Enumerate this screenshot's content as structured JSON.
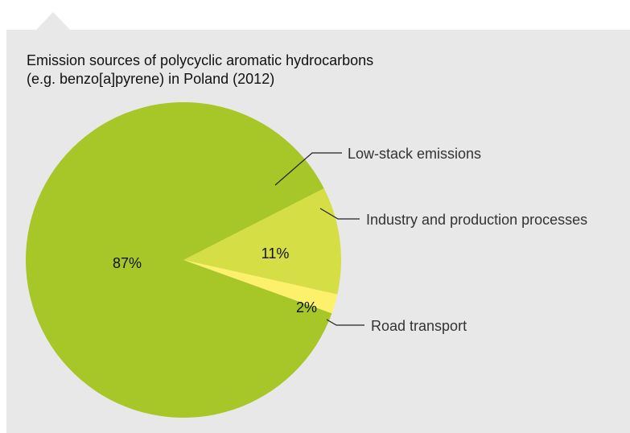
{
  "chart_data": {
    "type": "pie",
    "title_line1": "Emission sources of polycyclic aromatic hydrocarbons",
    "title_line2": "(e.g. benzo[a]pyrene) in Poland (2012)",
    "slices": [
      {
        "label": "Low-stack emissions",
        "value": 87,
        "value_label": "87%",
        "color": "#a7c627"
      },
      {
        "label": "Industry and production processes",
        "value": 11,
        "value_label": "11%",
        "color": "#d5de45"
      },
      {
        "label": "Road transport",
        "value": 2,
        "value_label": "2%",
        "color": "#fdf06b"
      }
    ]
  },
  "colors": {
    "card_background": "#e8e8e8",
    "leader_line": "#222222"
  }
}
